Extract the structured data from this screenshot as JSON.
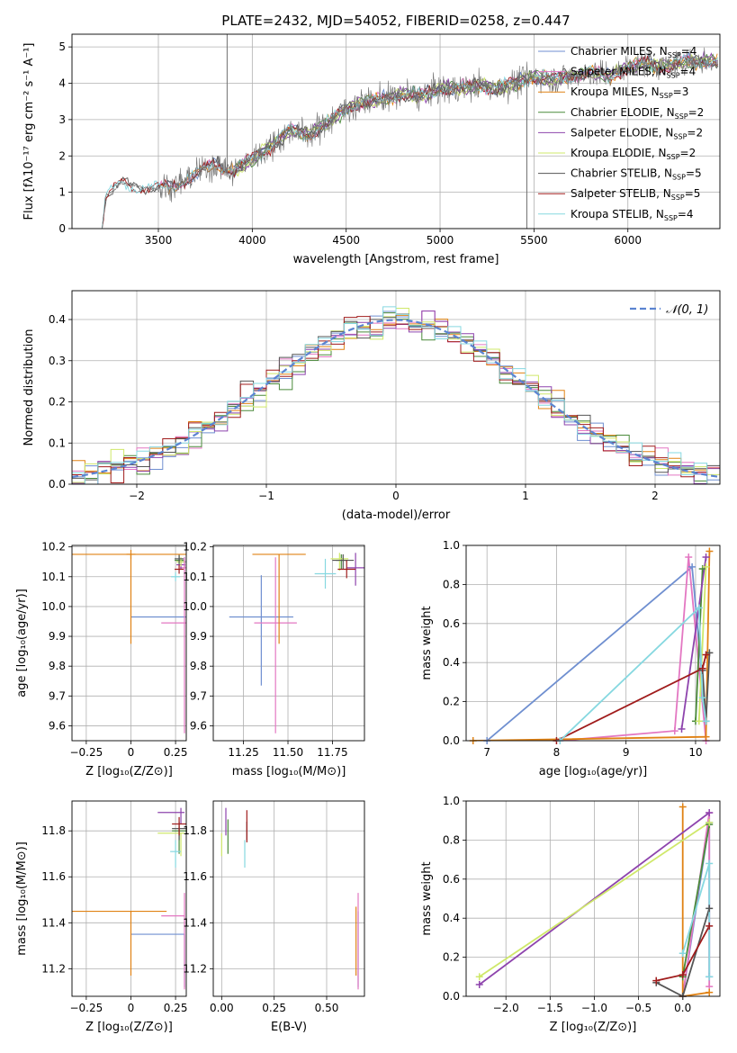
{
  "figure": {
    "title": "PLATE=2432, MJD=54052, FIBERID=0258, z=0.447"
  },
  "chart_data": [
    {
      "id": "spectrum",
      "type": "line",
      "xlabel": "wavelength [Angstrom, rest frame]",
      "ylabel": "Flux [fλ10⁻¹⁷ erg cm⁻² s⁻¹ A⁻¹]",
      "xlim": [
        3040,
        6490
      ],
      "ylim": [
        0,
        5.35
      ],
      "xticks": [
        3500,
        4000,
        4500,
        5000,
        5500,
        6000
      ],
      "yticks": [
        0,
        1,
        2,
        3,
        4,
        5
      ],
      "legend_position": "top-right",
      "data_trend": {
        "x": [
          3200,
          3220,
          3260,
          3300,
          3400,
          3500,
          3600,
          3700,
          3800,
          3900,
          4000,
          4100,
          4200,
          4300,
          4400,
          4500,
          4600,
          4700,
          4800,
          4900,
          5000,
          5100,
          5200,
          5300,
          5400,
          5500,
          5600,
          5700,
          5800,
          5900,
          6000,
          6100,
          6200,
          6300
        ],
        "y": [
          0.0,
          0.9,
          1.05,
          1.25,
          1.15,
          1.1,
          1.2,
          1.5,
          1.75,
          1.6,
          1.9,
          2.3,
          2.7,
          2.6,
          2.9,
          3.3,
          3.5,
          3.55,
          3.7,
          3.65,
          3.85,
          3.85,
          3.95,
          3.85,
          4.0,
          4.2,
          4.1,
          4.2,
          4.3,
          4.2,
          4.45,
          4.55,
          4.45,
          4.6
        ]
      },
      "data_noise": 0.55,
      "data_noise_start": 3500,
      "spikes": [
        {
          "x": 3866,
          "y": 5.35
        },
        {
          "x": 5462,
          "y": 0.0
        }
      ],
      "series": [
        {
          "name": "Chabrier MILES, N$_{SSP}$=4",
          "label": "Chabrier MILES, N",
          "sub": "SSP",
          "suffix": "=4",
          "color": "#6f8fd0",
          "start": 3500
        },
        {
          "name": "Salpeter MILES, N$_{SSP}$=4",
          "label": "Salpeter MILES, N",
          "sub": "SSP",
          "suffix": "=4",
          "color": "#e377c2",
          "start": 3500
        },
        {
          "name": "Kroupa MILES, N$_{SSP}$=3",
          "label": "Kroupa MILES, N",
          "sub": "SSP",
          "suffix": "=3",
          "color": "#e08214",
          "start": 3500
        },
        {
          "name": "Chabrier ELODIE, N$_{SSP}$=2",
          "label": "Chabrier ELODIE, N",
          "sub": "SSP",
          "suffix": "=2",
          "color": "#4a8a3a",
          "start": 3900
        },
        {
          "name": "Salpeter ELODIE, N$_{SSP}$=2",
          "label": "Salpeter ELODIE, N",
          "sub": "SSP",
          "suffix": "=2",
          "color": "#8e44ad",
          "start": 3900
        },
        {
          "name": "Kroupa ELODIE, N$_{SSP}$=2",
          "label": "Kroupa ELODIE, N",
          "sub": "SSP",
          "suffix": "=2",
          "color": "#cfe86a",
          "start": 3900
        },
        {
          "name": "Chabrier STELIB, N$_{SSP}$=5",
          "label": "Chabrier STELIB, N",
          "sub": "SSP",
          "suffix": "=5",
          "color": "#555555",
          "start": 3200
        },
        {
          "name": "Salpeter STELIB, N$_{SSP}$=5",
          "label": "Salpeter STELIB, N",
          "sub": "SSP",
          "suffix": "=5",
          "color": "#a01c1c",
          "start": 3200
        },
        {
          "name": "Kroupa STELIB, N$_{SSP}$=4",
          "label": "Kroupa STELIB, N",
          "sub": "SSP",
          "suffix": "=4",
          "color": "#86d8e0",
          "start": 3200
        }
      ]
    },
    {
      "id": "residuals",
      "type": "histogram",
      "xlabel": "(data-model)/error",
      "ylabel": "Normed distribution",
      "xlim": [
        -2.5,
        2.5
      ],
      "ylim": [
        0,
        0.47
      ],
      "xticks": [
        -2,
        -1,
        0,
        1,
        2
      ],
      "yticks": [
        0.0,
        0.1,
        0.2,
        0.3,
        0.4
      ],
      "bin_width": 0.1,
      "legend": {
        "label": "𝒩(0, 1)",
        "position": "top-right",
        "color": "#5b84d1"
      }
    },
    {
      "id": "z_age",
      "type": "errorbar",
      "xlabel": "Z [log₁₀(Z/Z⊙)]",
      "ylabel": "age  [log₁₀(age/yr)]",
      "xlim": [
        -0.33,
        0.31
      ],
      "ylim": [
        9.55,
        10.205
      ],
      "xticks": [
        -0.25,
        0.0,
        0.25
      ],
      "yticks": [
        9.6,
        9.7,
        9.8,
        9.9,
        10.0,
        10.1,
        10.2
      ],
      "points": [
        {
          "x": 0.3,
          "y": 10.15,
          "color": "#6f8fd0"
        },
        {
          "x": 0.3,
          "y": 10.13,
          "color": "#e377c2"
        },
        {
          "x": 0.0,
          "y": 10.175,
          "color": "#e08214"
        },
        {
          "x": 0.27,
          "y": 10.155,
          "color": "#4a8a3a"
        },
        {
          "x": 0.28,
          "y": 10.14,
          "color": "#8e44ad"
        },
        {
          "x": 0.28,
          "y": 10.15,
          "color": "#cfe86a"
        },
        {
          "x": 0.27,
          "y": 10.16,
          "color": "#555555"
        },
        {
          "x": 0.27,
          "y": 10.125,
          "color": "#a01c1c"
        },
        {
          "x": 0.25,
          "y": 10.1,
          "color": "#86d8e0"
        },
        {
          "x": 0.3,
          "y": 9.965,
          "color": "#6f8fd0",
          "xerr": 0.3,
          "yerr_lo": 0.0,
          "yerr_hi": 0.0
        },
        {
          "x": 0.3,
          "y": 9.945,
          "color": "#e377c2",
          "xerr": 0.13
        },
        {
          "x": 0.0,
          "y": 10.175,
          "color": "#e08214",
          "xerr": 0.33,
          "yerr_lo": 0.3,
          "yerr_hi": 0.0
        },
        {
          "x": 0.3,
          "y": 9.945,
          "color": "#e377c2",
          "yerr_lo": 0.37,
          "yerr_hi": 0.22
        }
      ]
    },
    {
      "id": "mass_age",
      "type": "errorbar",
      "xlabel": "mass [log₁₀(M/M⊙)]",
      "ylabel": "",
      "xlim": [
        11.08,
        11.93
      ],
      "ylim": [
        9.55,
        10.205
      ],
      "xticks": [
        11.25,
        11.5,
        11.75
      ],
      "xticklabels": [
        "11.25",
        "11.50",
        "11.75"
      ],
      "yticks": [
        9.6,
        9.7,
        9.8,
        9.9,
        10.0,
        10.1,
        10.2
      ],
      "points": [
        {
          "x": 11.35,
          "y": 9.965,
          "color": "#6f8fd0",
          "xerr": 0.18,
          "yerr_lo": 0.23,
          "yerr_hi": 0.14
        },
        {
          "x": 11.43,
          "y": 9.945,
          "color": "#e377c2",
          "xerr": 0.12,
          "yerr_lo": 0.37,
          "yerr_hi": 0.22
        },
        {
          "x": 11.45,
          "y": 10.175,
          "color": "#e08214",
          "xerr": 0.15,
          "yerr_lo": 0.3,
          "yerr_hi": 0.0
        },
        {
          "x": 11.8,
          "y": 10.155,
          "color": "#4a8a3a",
          "xerr": 0.03,
          "yerr_lo": 0.03,
          "yerr_hi": 0.02
        },
        {
          "x": 11.88,
          "y": 10.13,
          "color": "#8e44ad",
          "xerr": 0.05,
          "yerr_lo": 0.06,
          "yerr_hi": 0.05
        },
        {
          "x": 11.79,
          "y": 10.16,
          "color": "#cfe86a",
          "xerr": 0.05,
          "yerr_lo": 0.04,
          "yerr_hi": 0.02
        },
        {
          "x": 11.81,
          "y": 10.155,
          "color": "#555555",
          "xerr": 0.06,
          "yerr_lo": 0.03,
          "yerr_hi": 0.02
        },
        {
          "x": 11.83,
          "y": 10.125,
          "color": "#a01c1c",
          "xerr": 0.05,
          "yerr_lo": 0.03,
          "yerr_hi": 0.03
        },
        {
          "x": 11.71,
          "y": 10.11,
          "color": "#86d8e0",
          "xerr": 0.06,
          "yerr_lo": 0.05,
          "yerr_hi": 0.05
        }
      ]
    },
    {
      "id": "weight_age",
      "type": "line",
      "xlabel": "age  [log₁₀(age/yr)]",
      "ylabel": "mass weight",
      "xlim": [
        6.7,
        10.35
      ],
      "ylim": [
        0,
        1.0
      ],
      "xticks": [
        7,
        8,
        9,
        10
      ],
      "yticks": [
        0.0,
        0.2,
        0.4,
        0.6,
        0.8,
        1.0
      ],
      "series": [
        {
          "color": "#6f8fd0",
          "x": [
            7.0,
            9.95,
            10.15
          ],
          "y": [
            0.0,
            0.89,
            0.1
          ]
        },
        {
          "color": "#e377c2",
          "x": [
            8.05,
            9.7,
            9.9,
            10.15
          ],
          "y": [
            0.0,
            0.05,
            0.94,
            0.0
          ]
        },
        {
          "color": "#e08214",
          "x": [
            6.8,
            10.15,
            10.2
          ],
          "y": [
            0.0,
            0.02,
            0.97
          ]
        },
        {
          "color": "#4a8a3a",
          "x": [
            10.0,
            10.1
          ],
          "y": [
            0.1,
            0.88
          ]
        },
        {
          "color": "#8e44ad",
          "x": [
            9.8,
            10.15
          ],
          "y": [
            0.06,
            0.94
          ]
        },
        {
          "color": "#cfe86a",
          "x": [
            10.05,
            10.15
          ],
          "y": [
            0.1,
            0.89
          ]
        },
        {
          "color": "#555555",
          "x": [
            10.1,
            10.15,
            10.2
          ],
          "y": [
            0.36,
            0.1,
            0.45
          ]
        },
        {
          "color": "#a01c1c",
          "x": [
            8.0,
            10.1,
            10.15
          ],
          "y": [
            0.0,
            0.37,
            0.44
          ]
        },
        {
          "color": "#86d8e0",
          "x": [
            8.05,
            10.05,
            10.1,
            10.15
          ],
          "y": [
            0.0,
            0.68,
            0.22,
            0.1
          ]
        }
      ]
    },
    {
      "id": "z_mass",
      "type": "errorbar",
      "xlabel": "Z [log₁₀(Z/Z⊙)]",
      "ylabel": "mass [log₁₀(M/M⊙)]",
      "xlim": [
        -0.33,
        0.31
      ],
      "ylim": [
        11.08,
        11.93
      ],
      "xticks": [
        -0.25,
        0.0,
        0.25
      ],
      "yticks": [
        11.2,
        11.4,
        11.6,
        11.8
      ],
      "points": [
        {
          "x": 0.3,
          "y": 11.35,
          "color": "#6f8fd0",
          "xerr_lo": 0.3,
          "xerr_hi": 0.0,
          "yerr_lo": 0.23,
          "yerr_hi": 0.0
        },
        {
          "x": 0.3,
          "y": 11.43,
          "color": "#e377c2",
          "xerr_lo": 0.13,
          "xerr_hi": 0.0,
          "yerr_lo": 0.32,
          "yerr_hi": 0.1
        },
        {
          "x": 0.0,
          "y": 11.45,
          "color": "#e08214",
          "xerr_lo": 0.33,
          "xerr_hi": 0.2,
          "yerr_lo": 0.28,
          "yerr_hi": 0.0
        },
        {
          "x": 0.27,
          "y": 11.8,
          "color": "#4a8a3a",
          "xerr": 0.04,
          "yerr_lo": 0.1,
          "yerr_hi": 0.02
        },
        {
          "x": 0.28,
          "y": 11.88,
          "color": "#8e44ad",
          "xerr_lo": 0.13,
          "xerr_hi": 0.02,
          "yerr_lo": 0.05,
          "yerr_hi": 0.02
        },
        {
          "x": 0.28,
          "y": 11.79,
          "color": "#cfe86a",
          "xerr_lo": 0.13,
          "xerr_hi": 0.02,
          "yerr_lo": 0.1,
          "yerr_hi": 0.0
        },
        {
          "x": 0.27,
          "y": 11.81,
          "color": "#555555",
          "xerr": 0.04,
          "yerr_lo": 0.05,
          "yerr_hi": 0.03
        },
        {
          "x": 0.27,
          "y": 11.83,
          "color": "#a01c1c",
          "xerr": 0.04,
          "yerr_lo": 0.05,
          "yerr_hi": 0.03
        },
        {
          "x": 0.25,
          "y": 11.71,
          "color": "#86d8e0",
          "xerr": 0.03,
          "yerr_lo": 0.07,
          "yerr_hi": 0.05
        }
      ]
    },
    {
      "id": "ebv_mass",
      "type": "errorbar",
      "xlabel": "E(B-V)",
      "ylabel": "",
      "xlim": [
        -0.04,
        0.68
      ],
      "ylim": [
        11.08,
        11.93
      ],
      "xticks": [
        0.0,
        0.25,
        0.5
      ],
      "xticklabels": [
        "0.00",
        "0.25",
        "0.50"
      ],
      "yticks": [
        11.2,
        11.4,
        11.6,
        11.8
      ],
      "points": [
        {
          "x": 0.65,
          "y": 11.35,
          "color": "#6f8fd0",
          "xerr": 0.0,
          "yerr_lo": 0.23,
          "yerr_hi": 0.1
        },
        {
          "x": 0.65,
          "y": 11.43,
          "color": "#e377c2",
          "xerr": 0.0,
          "yerr_lo": 0.32,
          "yerr_hi": 0.1
        },
        {
          "x": 0.64,
          "y": 11.45,
          "color": "#e08214",
          "xerr": 0.0,
          "yerr_lo": 0.28,
          "yerr_hi": 0.02
        },
        {
          "x": 0.03,
          "y": 11.8,
          "color": "#4a8a3a",
          "xerr": 0.0,
          "yerr_lo": 0.1,
          "yerr_hi": 0.05
        },
        {
          "x": 0.02,
          "y": 11.88,
          "color": "#8e44ad",
          "xerr": 0.0,
          "yerr_lo": 0.1,
          "yerr_hi": 0.02
        },
        {
          "x": 0.0,
          "y": 11.79,
          "color": "#cfe86a",
          "xerr": 0.0,
          "yerr_lo": 0.1,
          "yerr_hi": 0.0
        },
        {
          "x": 0.12,
          "y": 11.81,
          "color": "#555555",
          "xerr": 0.0,
          "yerr_lo": 0.05,
          "yerr_hi": 0.03
        },
        {
          "x": 0.12,
          "y": 11.83,
          "color": "#a01c1c",
          "xerr": 0.0,
          "yerr_lo": 0.08,
          "yerr_hi": 0.06
        },
        {
          "x": 0.11,
          "y": 11.71,
          "color": "#86d8e0",
          "xerr": 0.0,
          "yerr_lo": 0.07,
          "yerr_hi": 0.05
        }
      ]
    },
    {
      "id": "weight_z",
      "type": "line",
      "xlabel": "Z [log₁₀(Z/Z⊙)]",
      "ylabel": "mass weight",
      "xlim": [
        -2.45,
        0.42
      ],
      "ylim": [
        0,
        1.0
      ],
      "xticks": [
        -2.0,
        -1.5,
        -1.0,
        -0.5,
        0.0
      ],
      "xticklabels": [
        "−2.0",
        "−1.5",
        "−1.0",
        "−0.5",
        "0.0"
      ],
      "yticks": [
        0.0,
        0.2,
        0.4,
        0.6,
        0.8,
        1.0
      ],
      "series": [
        {
          "color": "#6f8fd0",
          "x": [
            0.0,
            0.3,
            0.3
          ],
          "y": [
            0.0,
            0.89,
            0.1
          ]
        },
        {
          "color": "#e377c2",
          "x": [
            0.0,
            0.3,
            0.3
          ],
          "y": [
            0.0,
            0.94,
            0.05
          ]
        },
        {
          "color": "#e08214",
          "x": [
            0.0,
            0.0,
            0.3
          ],
          "y": [
            0.97,
            0.0,
            0.02
          ]
        },
        {
          "color": "#4a8a3a",
          "x": [
            0.0,
            0.3
          ],
          "y": [
            0.1,
            0.88
          ]
        },
        {
          "color": "#8e44ad",
          "x": [
            -2.3,
            0.3
          ],
          "y": [
            0.06,
            0.94
          ]
        },
        {
          "color": "#cfe86a",
          "x": [
            -2.3,
            0.3
          ],
          "y": [
            0.1,
            0.89
          ]
        },
        {
          "color": "#555555",
          "x": [
            -0.3,
            0.0,
            0.3
          ],
          "y": [
            0.07,
            0.0,
            0.45
          ]
        },
        {
          "color": "#a01c1c",
          "x": [
            -0.3,
            0.0,
            0.3
          ],
          "y": [
            0.08,
            0.11,
            0.36
          ]
        },
        {
          "color": "#86d8e0",
          "x": [
            0.0,
            0.3,
            0.3
          ],
          "y": [
            0.22,
            0.68,
            0.1
          ]
        }
      ]
    }
  ]
}
